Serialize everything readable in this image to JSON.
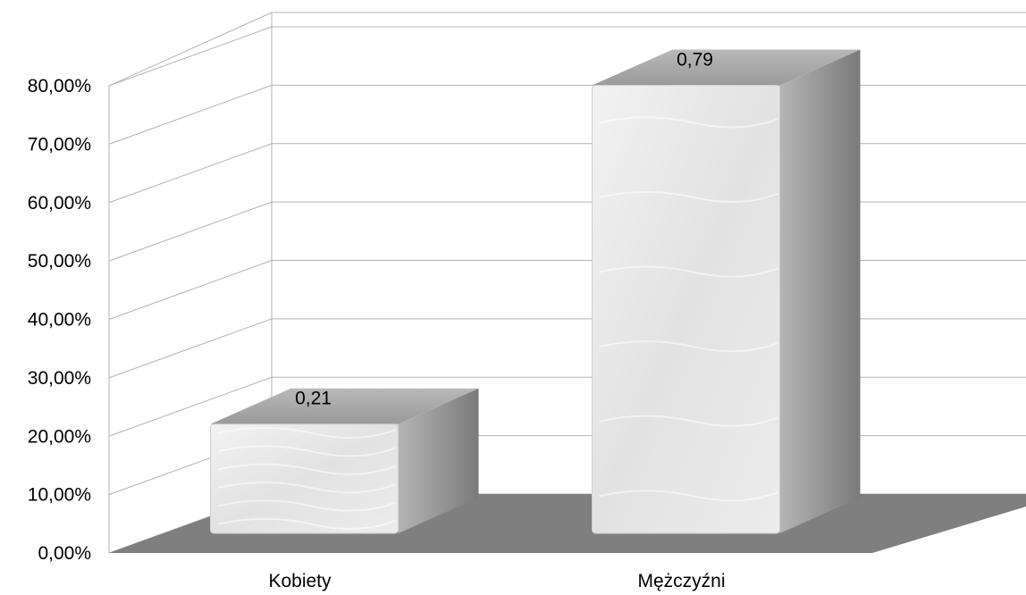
{
  "chart_data": {
    "type": "bar",
    "three_d": true,
    "categories": [
      "Kobiety",
      "Mężczyźni"
    ],
    "values": [
      0.21,
      0.79
    ],
    "data_labels": [
      "0,21",
      "0,79"
    ],
    "y_tick_labels": [
      "0,00%",
      "10,00%",
      "20,00%",
      "30,00%",
      "40,00%",
      "50,00%",
      "60,00%",
      "70,00%",
      "80,00%"
    ],
    "ylim": [
      0,
      0.8
    ],
    "grid": true,
    "legend": "none",
    "colors": {
      "floor": "#7f7f7f",
      "bar_front": "#e6e6e6",
      "bar_side": "#8c8c8c",
      "bar_top": "#a6a6a6",
      "grid": "#b3b3b3"
    }
  }
}
